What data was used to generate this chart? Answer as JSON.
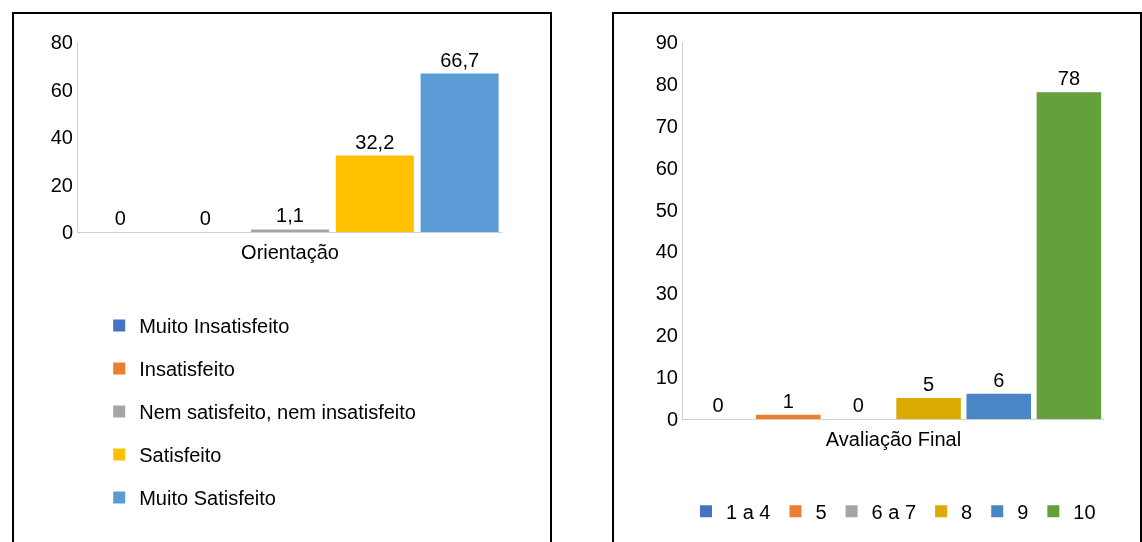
{
  "chart_data": [
    {
      "type": "bar",
      "categories": [
        null,
        null,
        null,
        null,
        null
      ],
      "xlabel": "Orientação",
      "ylim": [
        0,
        80
      ],
      "yticks": [
        0,
        20,
        40,
        60,
        80
      ],
      "grid": false,
      "legend": "bottom",
      "series": [
        {
          "name": "Muito Insatisfeito",
          "color": "#4472c4",
          "values": [
            0,
            null,
            null,
            null,
            null
          ],
          "value_labels": [
            "0",
            null,
            null,
            null,
            null
          ]
        },
        {
          "name": "Insatisfeito",
          "color": "#ed7d31",
          "values": [
            null,
            0,
            null,
            null,
            null
          ],
          "value_labels": [
            null,
            "0",
            null,
            null,
            null
          ]
        },
        {
          "name": "Nem satisfeito, nem insatisfeito",
          "color": "#a5a5a5",
          "values": [
            null,
            null,
            1.1,
            null,
            null
          ],
          "value_labels": [
            null,
            null,
            "1,1",
            null,
            null
          ]
        },
        {
          "name": "Satisfeito",
          "color": "#ffc000",
          "values": [
            null,
            null,
            null,
            32.2,
            null
          ],
          "value_labels": [
            null,
            null,
            null,
            "32,2",
            null
          ]
        },
        {
          "name": "Muito Satisfeito",
          "color": "#5b9bd5",
          "values": [
            null,
            null,
            null,
            null,
            66.7
          ],
          "value_labels": [
            null,
            null,
            null,
            null,
            "66,7"
          ]
        }
      ]
    },
    {
      "type": "bar",
      "categories": [
        null,
        null,
        null,
        null,
        null,
        null
      ],
      "xlabel": "Avaliação Final",
      "ylim": [
        0,
        90
      ],
      "yticks": [
        0,
        10,
        20,
        30,
        40,
        50,
        60,
        70,
        80,
        90
      ],
      "grid": false,
      "legend": "bottom",
      "series": [
        {
          "name": "1 a 4",
          "color": "#4472c4",
          "values": [
            0,
            null,
            null,
            null,
            null,
            null
          ],
          "value_labels": [
            "0",
            null,
            null,
            null,
            null,
            null
          ]
        },
        {
          "name": "5",
          "color": "#ed7d31",
          "values": [
            null,
            1,
            null,
            null,
            null,
            null
          ],
          "value_labels": [
            null,
            "1",
            null,
            null,
            null,
            null
          ]
        },
        {
          "name": "6 a 7",
          "color": "#a5a5a5",
          "values": [
            null,
            null,
            0,
            null,
            null,
            null
          ],
          "value_labels": [
            null,
            null,
            "0",
            null,
            null,
            null
          ]
        },
        {
          "name": "8",
          "color": "#dcaa00",
          "values": [
            null,
            null,
            null,
            5,
            null,
            null
          ],
          "value_labels": [
            null,
            null,
            null,
            "5",
            null,
            null
          ]
        },
        {
          "name": "9",
          "color": "#4a86c5",
          "values": [
            null,
            null,
            null,
            null,
            6,
            null
          ],
          "value_labels": [
            null,
            null,
            null,
            null,
            "6",
            null
          ]
        },
        {
          "name": "10",
          "color": "#64a03c",
          "values": [
            null,
            null,
            null,
            null,
            null,
            78
          ],
          "value_labels": [
            null,
            null,
            null,
            null,
            null,
            "78"
          ]
        }
      ]
    }
  ]
}
